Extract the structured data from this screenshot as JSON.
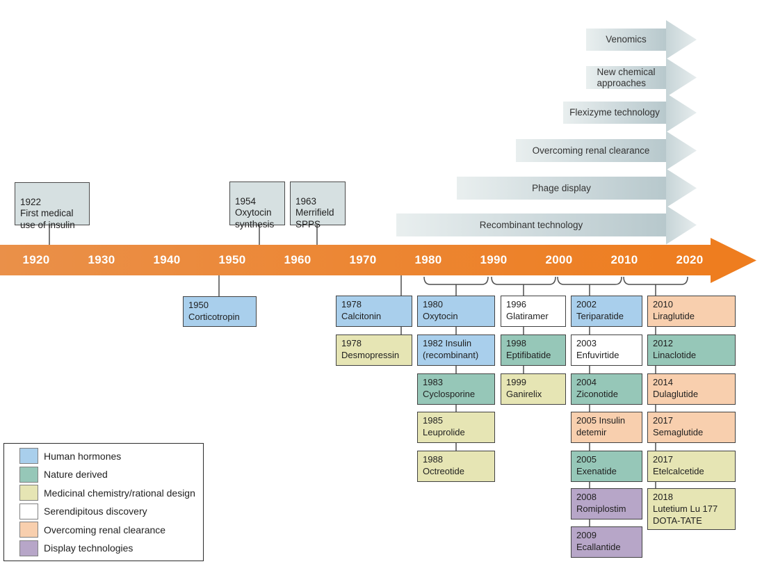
{
  "figure": {
    "description": "Timeline of peptide drug discovery milestones, technologies and approved drugs, 1920-2020"
  },
  "timeline": {
    "decades": [
      "1920",
      "1930",
      "1940",
      "1950",
      "1960",
      "1970",
      "1980",
      "1990",
      "2000",
      "2010",
      "2020"
    ],
    "bar_gradient_left": "#ea9049",
    "bar_gradient_right": "#ee7d1f",
    "label_color": "#ffffff"
  },
  "milestones_above": [
    {
      "label": "1922\nFirst medical\nuse of insulin"
    },
    {
      "label": "1954\nOxytocin\nsynthesis"
    },
    {
      "label": "1963\nMerrifield\nSPPS"
    }
  ],
  "technology_banners": [
    {
      "label": "Venomics"
    },
    {
      "label": "New chemical\napproaches"
    },
    {
      "label": "Flexizyme technology"
    },
    {
      "label": "Overcoming renal clearance"
    },
    {
      "label": "Phage display"
    },
    {
      "label": "Recombinant technology"
    }
  ],
  "drugs": {
    "pre_decade_columns": [
      {
        "label": "1950\nCorticotropin",
        "category": "human_hormones"
      }
    ],
    "columns": [
      {
        "decade": "1970s",
        "items": [
          {
            "label": "1978\nCalcitonin",
            "category": "human_hormones"
          },
          {
            "label": "1978\nDesmopressin",
            "category": "medicinal_chemistry"
          }
        ]
      },
      {
        "decade": "1980s",
        "items": [
          {
            "label": "1980\nOxytocin",
            "category": "human_hormones"
          },
          {
            "label": "1982 Insulin\n(recombinant)",
            "category": "human_hormones"
          },
          {
            "label": "1983\nCyclosporine",
            "category": "nature_derived"
          },
          {
            "label": "1985\nLeuprolide",
            "category": "medicinal_chemistry"
          },
          {
            "label": "1988\nOctreotide",
            "category": "medicinal_chemistry"
          }
        ]
      },
      {
        "decade": "1990s",
        "items": [
          {
            "label": "1996\nGlatiramer",
            "category": "serendipitous_discovery"
          },
          {
            "label": "1998\nEptifibatide",
            "category": "nature_derived"
          },
          {
            "label": "1999\nGanirelix",
            "category": "medicinal_chemistry"
          }
        ]
      },
      {
        "decade": "2000s",
        "items": [
          {
            "label": "2002\nTeriparatide",
            "category": "human_hormones"
          },
          {
            "label": "2003\nEnfuvirtide",
            "category": "serendipitous_discovery"
          },
          {
            "label": "2004\nZiconotide",
            "category": "nature_derived"
          },
          {
            "label": "2005 Insulin\ndetemir",
            "category": "overcoming_renal_clearance"
          },
          {
            "label": "2005\nExenatide",
            "category": "nature_derived"
          },
          {
            "label": "2008\nRomiplostim",
            "category": "display_technologies"
          },
          {
            "label": "2009\nEcallantide",
            "category": "display_technologies"
          }
        ]
      },
      {
        "decade": "2010s",
        "items": [
          {
            "label": "2010\nLiraglutide",
            "category": "overcoming_renal_clearance"
          },
          {
            "label": "2012\nLinaclotide",
            "category": "nature_derived"
          },
          {
            "label": "2014\nDulaglutide",
            "category": "overcoming_renal_clearance"
          },
          {
            "label": "2017\nSemaglutide",
            "category": "overcoming_renal_clearance"
          },
          {
            "label": "2017\nEtelcalcetide",
            "category": "medicinal_chemistry"
          },
          {
            "label": "2018\nLutetium Lu 177\nDOTA-TATE",
            "category": "medicinal_chemistry",
            "tall": true
          }
        ]
      }
    ]
  },
  "legend": {
    "items": [
      {
        "label": "Human hormones",
        "category": "human_hormones"
      },
      {
        "label": "Nature derived",
        "category": "nature_derived"
      },
      {
        "label": "Medicinal chemistry/rational design",
        "category": "medicinal_chemistry"
      },
      {
        "label": "Serendipitous discovery",
        "category": "serendipitous_discovery"
      },
      {
        "label": "Overcoming renal clearance",
        "category": "overcoming_renal_clearance"
      },
      {
        "label": "Display technologies",
        "category": "display_technologies"
      }
    ]
  },
  "palette": {
    "human_hormones": "#a9cfec",
    "nature_derived": "#96c7b8",
    "medicinal_chemistry": "#e6e5b4",
    "serendipitous_discovery": "#ffffff",
    "overcoming_renal_clearance": "#f8cfae",
    "display_technologies": "#b7a6c8",
    "timeline_orange": "#ee7d1f",
    "milestone_box_fill": "#d6e0e1",
    "banner_light": "#e9efef",
    "banner_dark": "#b7c8cc",
    "box_border": "#414141",
    "connector": "#4d4d4d",
    "text": "#1f1f1f"
  }
}
